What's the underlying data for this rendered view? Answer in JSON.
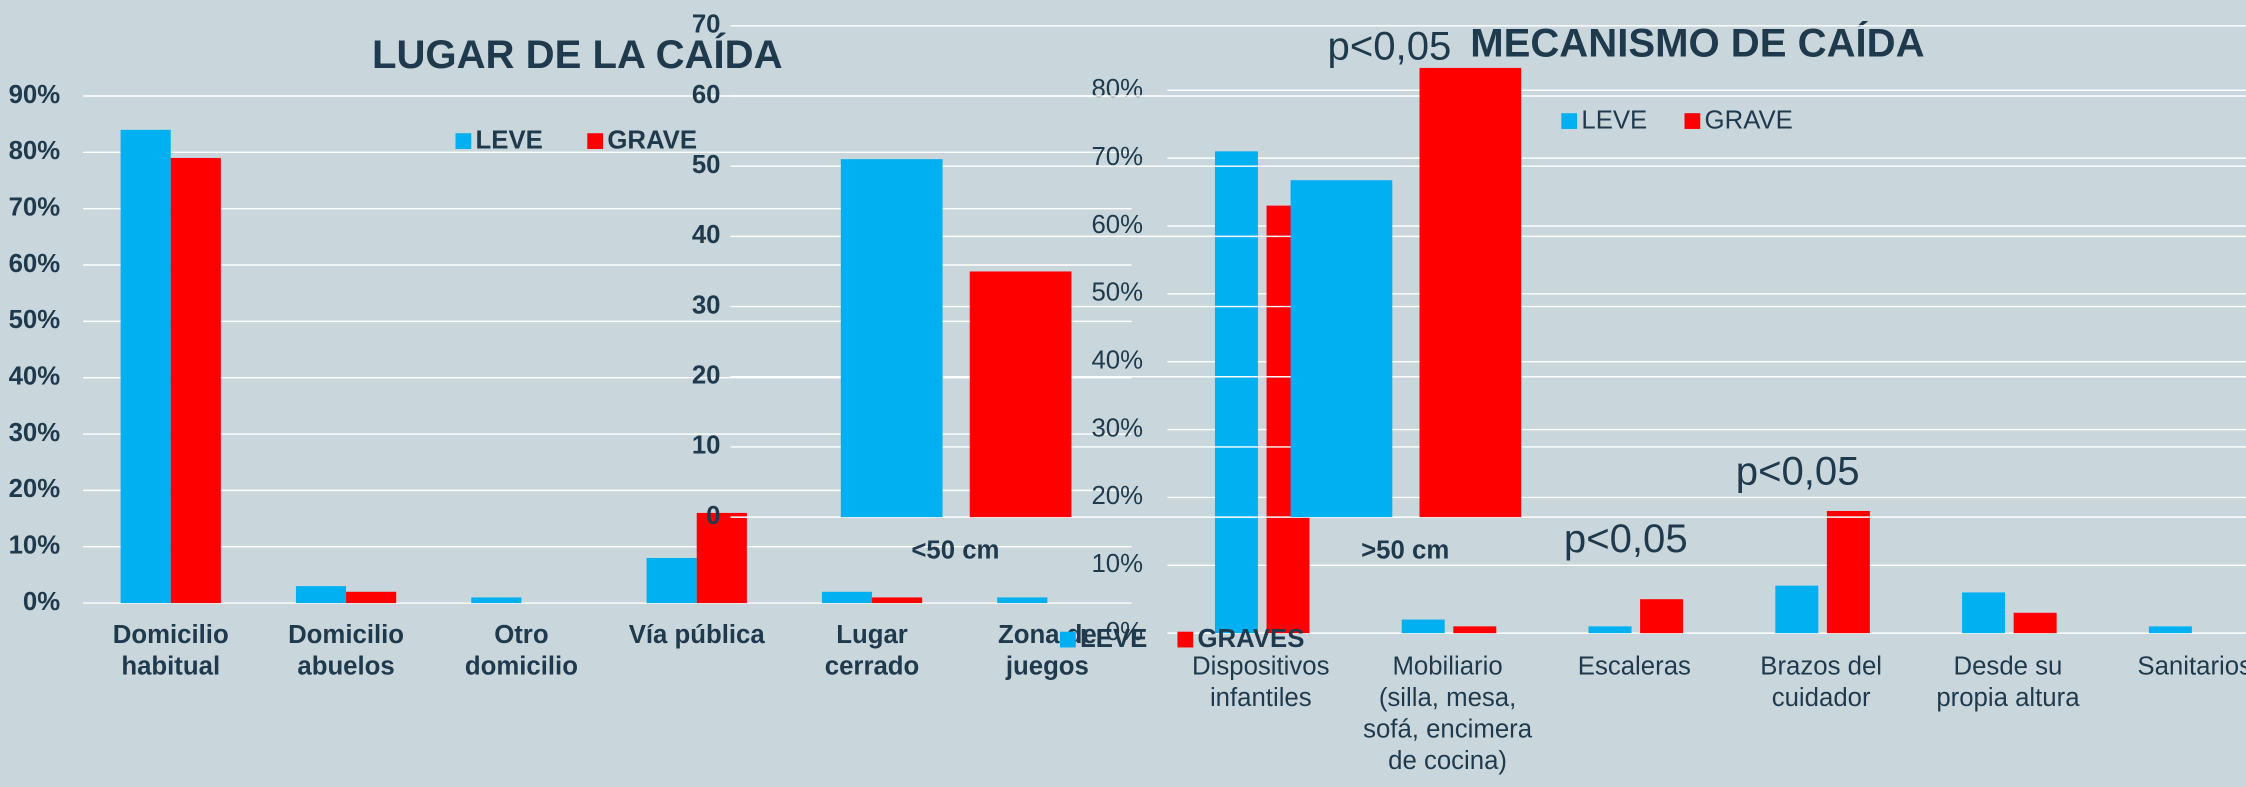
{
  "chart_data": [
    {
      "type": "bar",
      "title": "LUGAR DE LA CAÍDA",
      "categories": [
        [
          "Domicilio",
          "habitual"
        ],
        [
          "Domicilio",
          "abuelos"
        ],
        [
          "Otro",
          "domicilio"
        ],
        [
          "Vía pública"
        ],
        [
          "Lugar",
          "cerrado"
        ],
        [
          "Zona de",
          "juegos"
        ]
      ],
      "series": [
        {
          "name": "LEVE",
          "color": "#00b0f0",
          "values": [
            84,
            3,
            1,
            8,
            2,
            1
          ]
        },
        {
          "name": "GRAVE",
          "color": "#ff0000",
          "values": [
            79,
            2,
            0,
            16,
            1,
            0
          ]
        }
      ],
      "ylim": [
        0,
        90
      ],
      "yticks": [
        {
          "value": 0,
          "label": "0%"
        },
        {
          "value": 10,
          "label": "10%"
        },
        {
          "value": 20,
          "label": "20%"
        },
        {
          "value": 30,
          "label": "30%"
        },
        {
          "value": 40,
          "label": "40%"
        },
        {
          "value": 50,
          "label": "50%"
        },
        {
          "value": 60,
          "label": "60%"
        },
        {
          "value": 70,
          "label": "70%"
        },
        {
          "value": 80,
          "label": "80%"
        },
        {
          "value": 90,
          "label": "90%"
        }
      ],
      "grid": true,
      "legend": "top"
    },
    {
      "type": "bar",
      "categories": [
        [
          "<50 cm"
        ],
        [
          ">50 cm"
        ]
      ],
      "series": [
        {
          "name": "LEVE",
          "color": "#00b0f0",
          "values": [
            51,
            48
          ]
        },
        {
          "name": "GRAVES",
          "color": "#ff0000",
          "values": [
            35,
            64
          ]
        }
      ],
      "ylim": [
        0,
        70
      ],
      "yticks": [
        0,
        10,
        20,
        30,
        40,
        50,
        60,
        70
      ],
      "annotations": [
        "p<0,05"
      ],
      "grid": true,
      "legend": "bottom"
    },
    {
      "type": "bar",
      "title": "MECANISMO DE CAÍDA",
      "categories": [
        [
          "Dispositivos",
          "infantiles"
        ],
        [
          "Mobiliario",
          "(silla, mesa,",
          "sofá, encimera",
          "de cocina)"
        ],
        [
          "Escaleras"
        ],
        [
          "Brazos del",
          "cuidador"
        ],
        [
          "Desde su",
          "propia altura"
        ],
        [
          "Sanitarios"
        ]
      ],
      "series": [
        {
          "name": "LEVE",
          "color": "#00b0f0",
          "values": [
            71,
            2,
            1,
            7,
            6,
            1
          ]
        },
        {
          "name": "GRAVE",
          "color": "#ff0000",
          "values": [
            63,
            1,
            5,
            18,
            3,
            0
          ]
        }
      ],
      "ylim": [
        0,
        80
      ],
      "yticks": [
        {
          "value": 0,
          "label": "0%"
        },
        {
          "value": 10,
          "label": "10%"
        },
        {
          "value": 20,
          "label": "20%"
        },
        {
          "value": 30,
          "label": "30%"
        },
        {
          "value": 40,
          "label": "40%"
        },
        {
          "value": 50,
          "label": "50%"
        },
        {
          "value": 60,
          "label": "60%"
        },
        {
          "value": 70,
          "label": "70%"
        },
        {
          "value": 80,
          "label": "80%"
        }
      ],
      "annotations": [
        "p<0,05",
        "p<0,05"
      ],
      "grid": true,
      "legend": "top"
    }
  ]
}
